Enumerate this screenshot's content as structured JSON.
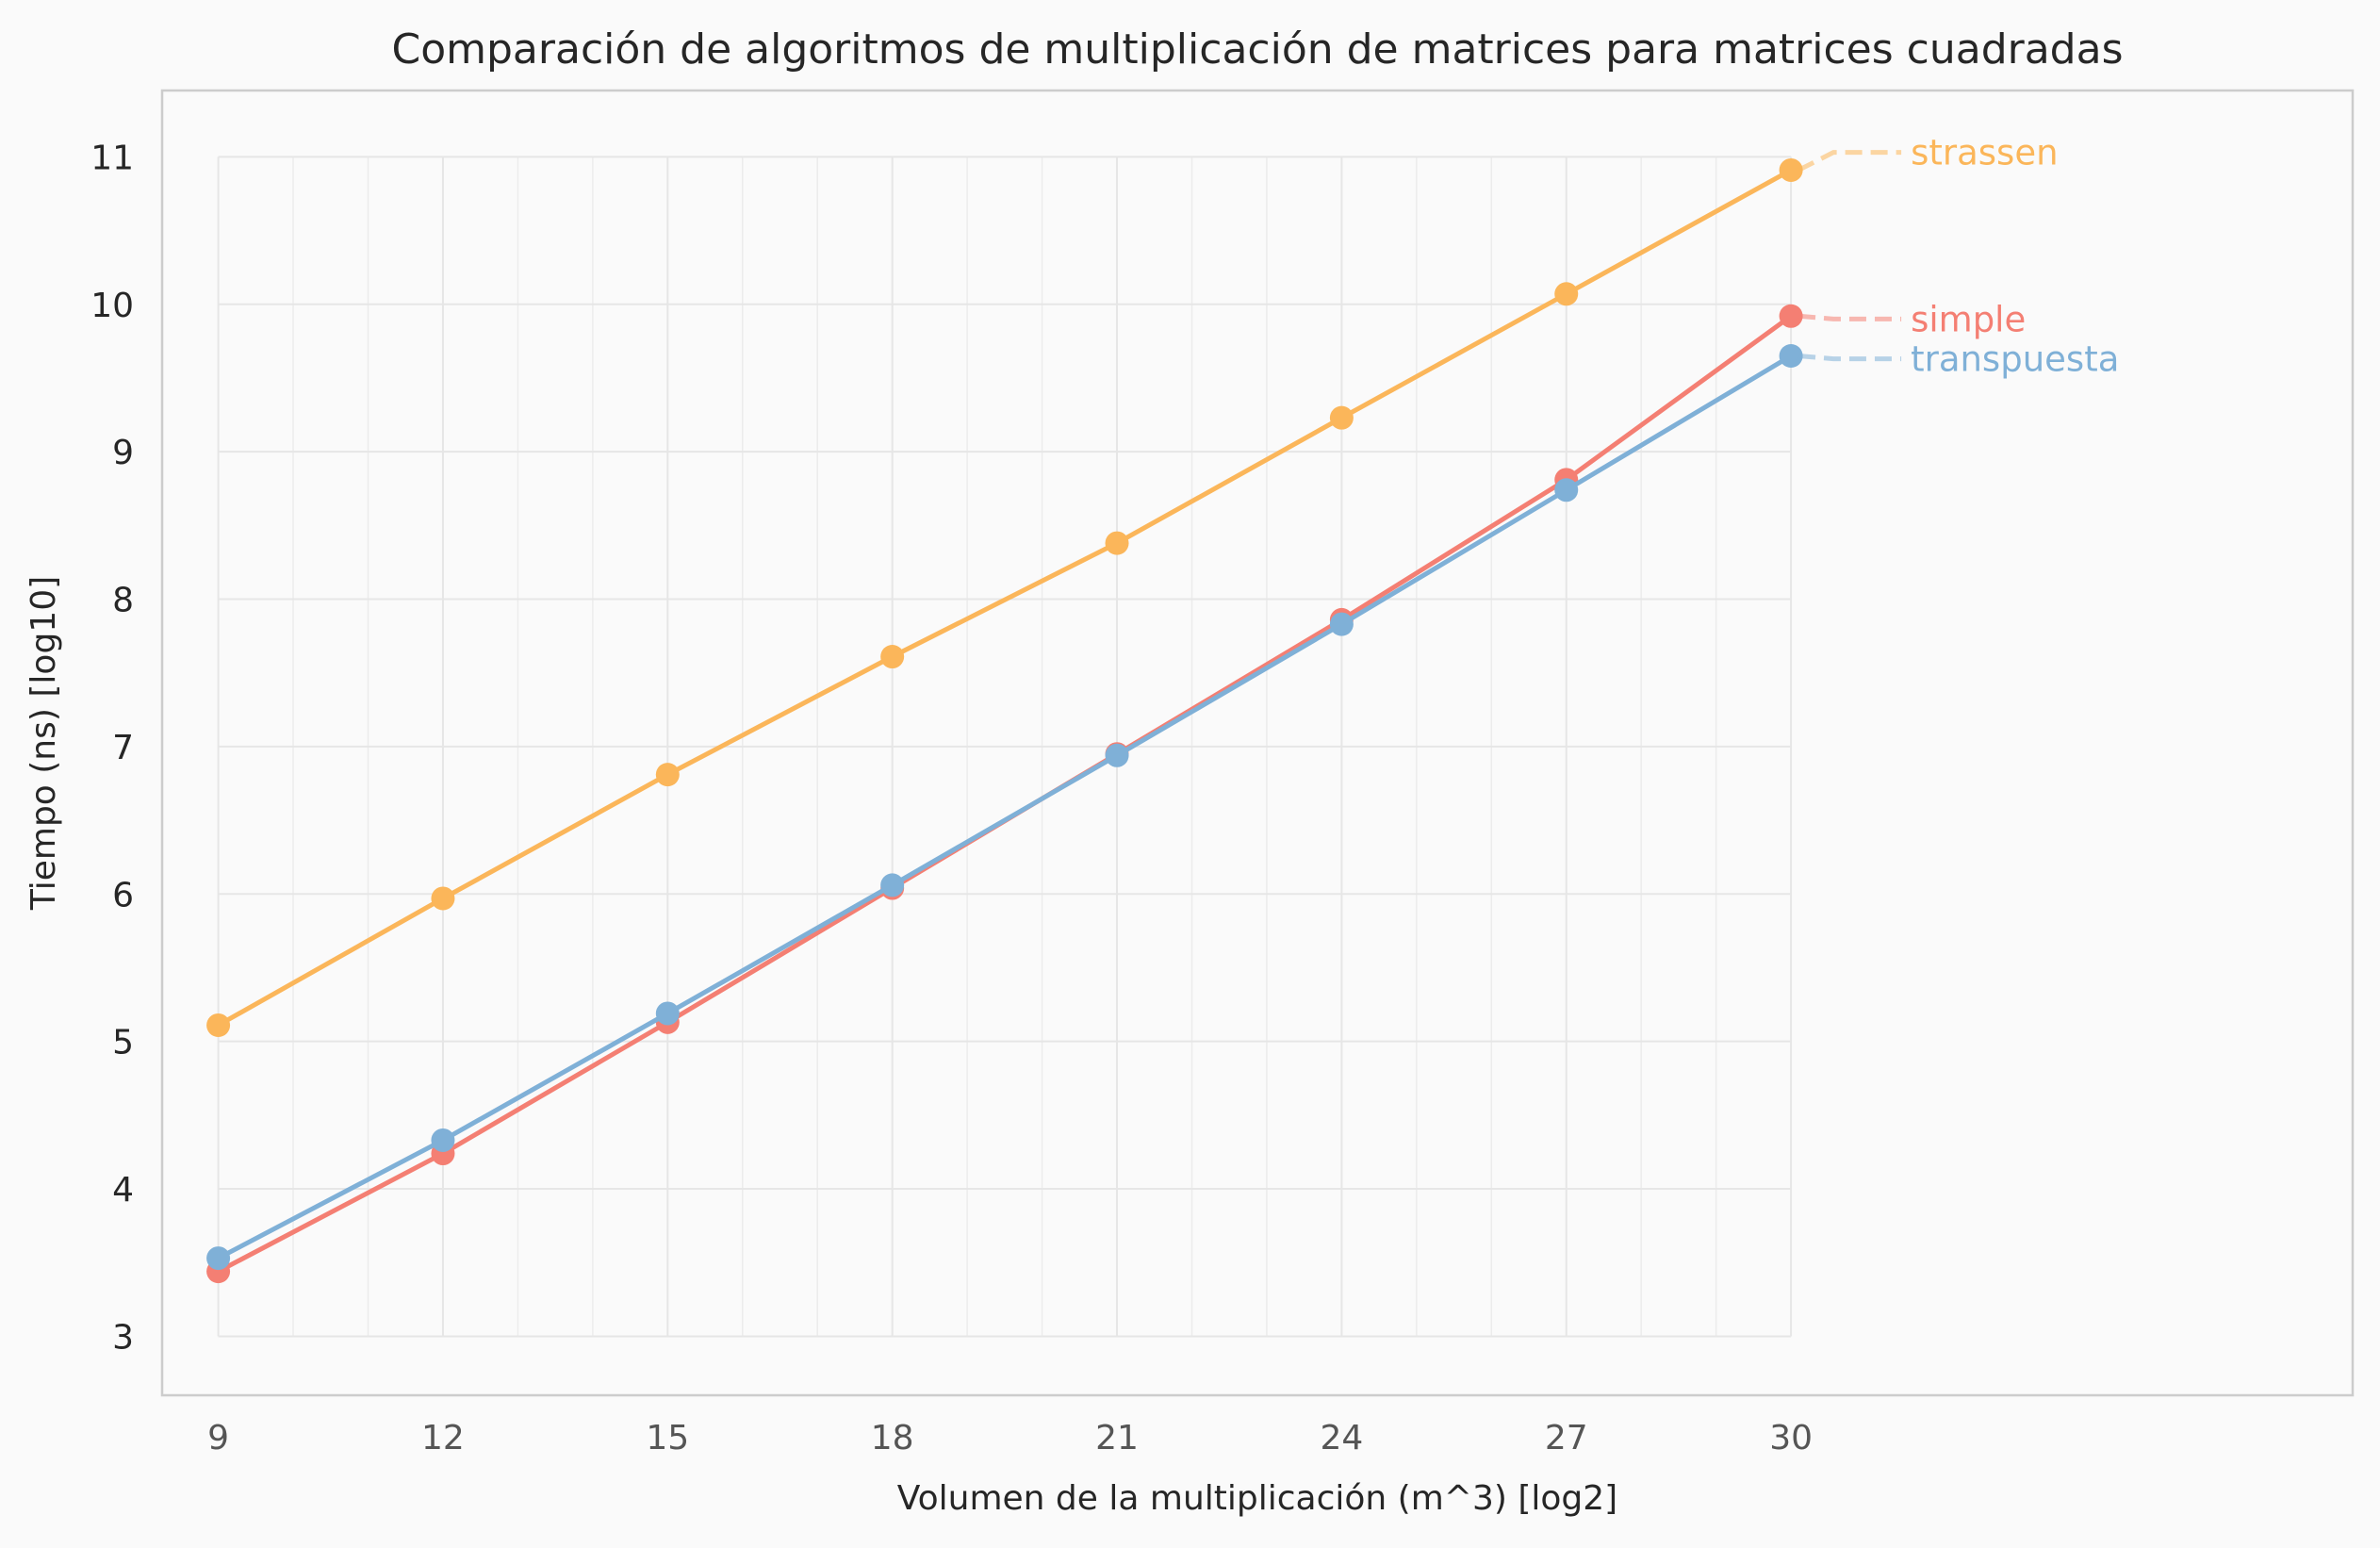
{
  "chart_data": {
    "type": "line",
    "title": "Comparación de algoritmos de multiplicación de matrices para matrices cuadradas",
    "xlabel": "Volumen de la multiplicación (m^3) [log2]",
    "ylabel": "Tiempo (ns) [log10]",
    "xlim": [
      8.25,
      37.5
    ],
    "ylim": [
      2.6,
      11.45
    ],
    "xticks": [
      9,
      12,
      15,
      18,
      21,
      24,
      27,
      30
    ],
    "yticks": [
      3,
      4,
      5,
      6,
      7,
      8,
      9,
      10,
      11
    ],
    "xminor_step": 1,
    "grid": true,
    "legend": "direct labels at line ends (right)",
    "x": [
      9,
      12,
      15,
      18,
      21,
      24,
      27,
      30
    ],
    "series": [
      {
        "name": "simple",
        "color": "#f47f73",
        "values": [
          3.44,
          4.24,
          5.13,
          6.04,
          6.95,
          7.86,
          8.81,
          9.92
        ]
      },
      {
        "name": "strassen",
        "color": "#fbb65a",
        "values": [
          5.11,
          5.97,
          6.81,
          7.61,
          8.38,
          9.23,
          10.07,
          10.91
        ]
      },
      {
        "name": "transpuesta",
        "color": "#7fb0d7",
        "values": [
          3.53,
          4.33,
          5.19,
          6.06,
          6.94,
          7.83,
          8.74,
          9.65
        ]
      }
    ],
    "series_label_values": [
      {
        "name": "strassen",
        "y": 11.03
      },
      {
        "name": "simple",
        "y": 9.9
      },
      {
        "name": "transpuesta",
        "y": 9.63
      }
    ]
  }
}
